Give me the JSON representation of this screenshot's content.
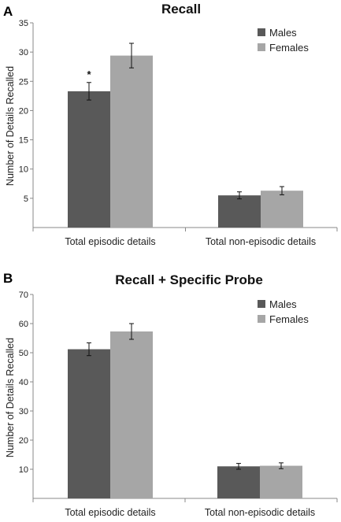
{
  "chart_data": [
    {
      "panel": "A",
      "type": "bar",
      "title": "Recall",
      "ylabel": "Number of Details Recalled",
      "ylim": [
        0,
        35
      ],
      "yticks": [
        5,
        10,
        15,
        20,
        25,
        30,
        35
      ],
      "categories": [
        "Total episodic details",
        "Total non-episodic details"
      ],
      "series": [
        {
          "name": "Males",
          "color": "#595959",
          "values": [
            23.3,
            5.5
          ],
          "errors": [
            1.5,
            0.6
          ]
        },
        {
          "name": "Females",
          "color": "#a6a6a6",
          "values": [
            29.4,
            6.3
          ],
          "errors": [
            2.1,
            0.7
          ]
        }
      ],
      "annotations": [
        {
          "text": "*",
          "series": 0,
          "category": 0
        }
      ],
      "legend": "top-right"
    },
    {
      "panel": "B",
      "type": "bar",
      "title": "Recall  + Specific Probe",
      "ylabel": "Number of Details Recalled",
      "ylim": [
        0,
        70
      ],
      "yticks": [
        10,
        20,
        30,
        40,
        50,
        60,
        70
      ],
      "categories": [
        "Total episodic details",
        "Total non-episodic details"
      ],
      "series": [
        {
          "name": "Males",
          "color": "#595959",
          "values": [
            51.2,
            11.0
          ],
          "errors": [
            2.2,
            1.0
          ]
        },
        {
          "name": "Females",
          "color": "#a6a6a6",
          "values": [
            57.3,
            11.2
          ],
          "errors": [
            2.7,
            1.0
          ]
        }
      ],
      "annotations": [],
      "legend": "top-right"
    }
  ]
}
